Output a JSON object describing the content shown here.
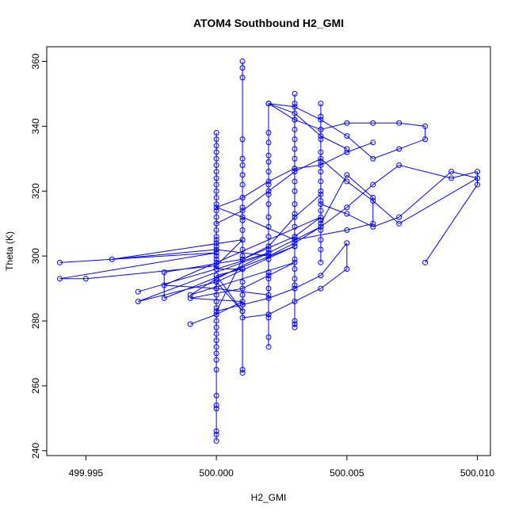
{
  "chart_data": {
    "type": "scatter",
    "title": "ATOM4 Southbound H2_GMI",
    "xlabel": "H2_GMI",
    "ylabel": "Theta (K)",
    "xlim": [
      499.9935,
      500.0105
    ],
    "ylim": [
      238.5,
      364.5
    ],
    "x_ticks": [
      {
        "value": 499.995,
        "label": "499.995"
      },
      {
        "value": 500.0,
        "label": "500.000"
      },
      {
        "value": 500.005,
        "label": "500.005"
      },
      {
        "value": 500.01,
        "label": "500.010"
      }
    ],
    "y_ticks": [
      {
        "value": 240,
        "label": "240"
      },
      {
        "value": 260,
        "label": "260"
      },
      {
        "value": 280,
        "label": "280"
      },
      {
        "value": 300,
        "label": "300"
      },
      {
        "value": 320,
        "label": "320"
      },
      {
        "value": 340,
        "label": "340"
      },
      {
        "value": 360,
        "label": "360"
      }
    ],
    "grid": false,
    "legend": "none",
    "marker": "open-circle",
    "connected": true,
    "series_color": "#0000ff",
    "series": [
      {
        "x": [
          500.0,
          500.0,
          500.0,
          500.0,
          500.0,
          500.0,
          500.0,
          500.0,
          500.0,
          500.0,
          500.0,
          500.0,
          500.0,
          500.0,
          500.0,
          500.0,
          500.0,
          500.0,
          500.0,
          500.0,
          500.001,
          500.0,
          500.001,
          500.0,
          500.0,
          500.0,
          500.0,
          500.0,
          500.0,
          500.0,
          500.0,
          500.0,
          500.0,
          500.0,
          500.0,
          500.0,
          500.0,
          500.0,
          500.0,
          500.0,
          500.0,
          500.0,
          500.0,
          500.0,
          500.0,
          500.0,
          500.0,
          500.0,
          500.0,
          500.0
        ],
        "y": [
          243,
          245,
          246,
          253,
          254,
          257,
          265,
          268,
          270,
          272,
          274,
          276,
          278,
          280,
          282,
          284,
          286,
          288,
          290,
          292,
          283,
          294,
          296,
          296,
          297,
          298,
          299,
          300,
          301,
          302,
          303,
          304,
          305,
          306,
          308,
          310,
          312,
          314,
          316,
          318,
          320,
          322,
          324,
          326,
          328,
          330,
          332,
          334,
          336,
          338
        ]
      },
      {
        "x": [
          500.001,
          500.001,
          500.001,
          500.001,
          500.001,
          500.001,
          500.001,
          500.001,
          500.001,
          500.001,
          500.001,
          500.001,
          500.001,
          500.001,
          500.001,
          500.001,
          500.001,
          500.001,
          500.001,
          500.001,
          500.001,
          500.001
        ],
        "y": [
          265,
          264,
          283,
          285,
          288,
          292,
          296,
          300,
          302,
          305,
          308,
          311,
          315,
          318,
          322,
          325,
          328,
          330,
          336,
          355,
          358,
          360
        ]
      },
      {
        "x": [
          499.994,
          500.0,
          499.994,
          499.995,
          500.0,
          500.001,
          499.996,
          500.0,
          500.002,
          500.003,
          500.004,
          500.005,
          500.006,
          500.007,
          500.009,
          500.01,
          500.01,
          500.008
        ],
        "y": [
          298,
          301,
          293,
          293,
          297,
          305,
          299,
          302,
          300,
          304,
          309,
          315,
          322,
          328,
          324,
          326,
          322,
          298
        ]
      },
      {
        "x": [
          499.997,
          500.0,
          500.002,
          499.997,
          500.0,
          500.003,
          499.998,
          499.998,
          500.001,
          500.003,
          500.004,
          499.998,
          500.0,
          500.002
        ],
        "y": [
          289,
          296,
          301,
          286,
          292,
          303,
          287,
          295,
          299,
          306,
          312,
          291,
          290,
          288
        ]
      },
      {
        "x": [
          499.999,
          500.0,
          500.001,
          499.999,
          500.001,
          500.002,
          500.003,
          499.999,
          500.0,
          500.002,
          500.004
        ],
        "y": [
          279,
          282,
          286,
          287,
          290,
          294,
          298,
          288,
          293,
          301,
          309
        ]
      },
      {
        "x": [
          500.002,
          500.002,
          500.002,
          500.002,
          500.002,
          500.002,
          500.002,
          500.002,
          500.002,
          500.002,
          500.002,
          500.002,
          500.002,
          500.002,
          500.002,
          500.002,
          500.002,
          500.002,
          500.002,
          500.002,
          500.002
        ],
        "y": [
          272,
          275,
          281,
          282,
          290,
          293,
          295,
          299,
          302,
          306,
          309,
          312,
          316,
          319,
          322,
          326,
          329,
          331,
          335,
          338,
          347
        ]
      },
      {
        "x": [
          500.003,
          500.003,
          500.003,
          500.003,
          500.003,
          500.003,
          500.003,
          500.003,
          500.003,
          500.003,
          500.003,
          500.003,
          500.003,
          500.003,
          500.003,
          500.003,
          500.003,
          500.003,
          500.003,
          500.003,
          500.003,
          500.003
        ],
        "y": [
          278,
          279,
          280,
          291,
          293,
          296,
          299,
          303,
          306,
          309,
          313,
          316,
          320,
          323,
          327,
          330,
          333,
          336,
          339,
          342,
          347,
          350
        ]
      },
      {
        "x": [
          500.004,
          500.004,
          500.004,
          500.004,
          500.004,
          500.004,
          500.004,
          500.004,
          500.004,
          500.004,
          500.004,
          500.004,
          500.004,
          500.004,
          500.004,
          500.004
        ],
        "y": [
          298,
          302,
          305,
          308,
          311,
          314,
          317,
          320,
          323,
          326,
          329,
          332,
          336,
          339,
          343,
          347
        ]
      },
      {
        "x": [
          500.002,
          500.003,
          500.004,
          500.005,
          500.006,
          500.007,
          500.008,
          500.008,
          500.007,
          500.006,
          500.005,
          500.004,
          500.003,
          500.002,
          500.003,
          500.004,
          500.005
        ],
        "y": [
          347,
          342,
          339,
          341,
          341,
          341,
          340,
          336,
          333,
          330,
          337,
          342,
          346,
          347,
          344,
          337,
          333
        ]
      },
      {
        "x": [
          500.004,
          500.005,
          500.006,
          500.007,
          500.009,
          500.01,
          500.007,
          500.006,
          500.005,
          500.004,
          500.003,
          500.002,
          500.001,
          500.0
        ],
        "y": [
          316,
          313,
          309,
          312,
          326,
          324,
          310,
          317,
          323,
          330,
          326,
          320,
          314,
          310
        ]
      },
      {
        "x": [
          500.001,
          500.002,
          500.003,
          500.004,
          500.005,
          500.005,
          500.004,
          500.003,
          500.002,
          500.001,
          500.0,
          500.001,
          500.002,
          500.003,
          500.004
        ],
        "y": [
          281,
          282,
          286,
          290,
          296,
          304,
          294,
          290,
          287,
          285,
          283,
          299,
          303,
          312,
          319
        ]
      },
      {
        "x": [
          500.006,
          500.005,
          500.004,
          500.003,
          500.002,
          500.001,
          500.0,
          500.001,
          500.003,
          500.005,
          500.006,
          500.006,
          500.005,
          500.004
        ],
        "y": [
          335,
          332,
          328,
          327,
          323,
          318,
          315,
          312,
          305,
          308,
          310,
          318,
          325,
          310
        ]
      }
    ]
  }
}
